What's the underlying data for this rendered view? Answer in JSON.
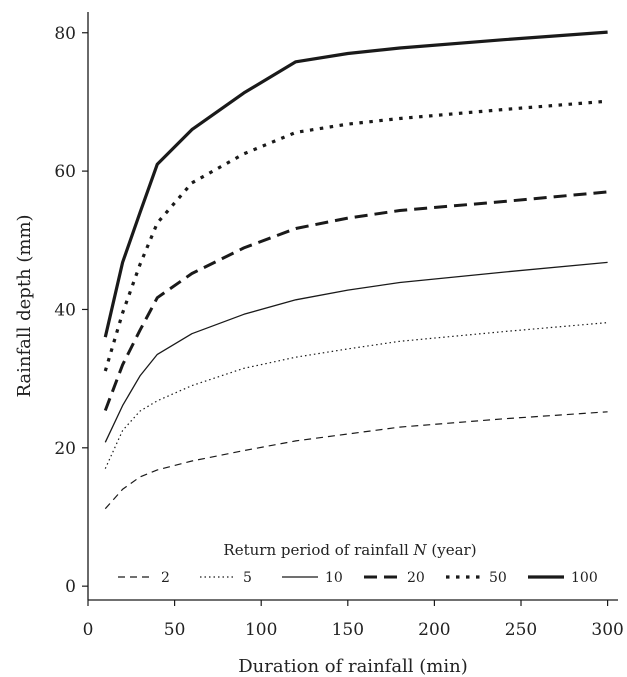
{
  "chart_data": {
    "type": "line",
    "title": "",
    "xlabel": "Duration of rainfall (min)",
    "ylabel": "Rainfall depth (mm)",
    "xlim": [
      0,
      306
    ],
    "ylim": [
      -2,
      83
    ],
    "xticks": [
      0,
      50,
      100,
      150,
      200,
      250,
      300
    ],
    "yticks": [
      0,
      20,
      40,
      60,
      80
    ],
    "grid": false,
    "legend": {
      "title_prefix": "Return period of rainfall ",
      "title_var": "N",
      "title_suffix": " (year)",
      "placement": "bottom",
      "entries": [
        "2",
        "5",
        "10",
        "20",
        "50",
        "100"
      ]
    },
    "x": [
      10,
      20,
      30,
      40,
      60,
      90,
      120,
      150,
      180,
      240,
      300
    ],
    "series": [
      {
        "name": "2",
        "style": "thin-dash",
        "values": [
          11.2,
          14.0,
          15.8,
          16.8,
          18.1,
          19.6,
          21.0,
          22.0,
          23.0,
          24.2,
          25.2
        ]
      },
      {
        "name": "5",
        "style": "thin-dot",
        "values": [
          17.0,
          22.5,
          25.3,
          26.8,
          29.0,
          31.5,
          33.1,
          34.3,
          35.4,
          36.8,
          38.1
        ]
      },
      {
        "name": "10",
        "style": "thin-solid",
        "values": [
          20.8,
          26.1,
          30.4,
          33.5,
          36.5,
          39.3,
          41.4,
          42.8,
          43.9,
          45.4,
          46.8
        ]
      },
      {
        "name": "20",
        "style": "bold-dash",
        "values": [
          25.4,
          32.0,
          37.0,
          41.7,
          45.2,
          48.9,
          51.7,
          53.2,
          54.3,
          55.6,
          57.0
        ]
      },
      {
        "name": "50",
        "style": "bold-dot",
        "values": [
          31.1,
          39.5,
          46.5,
          52.5,
          58.3,
          62.5,
          65.6,
          66.8,
          67.6,
          68.9,
          70.1
        ]
      },
      {
        "name": "100",
        "style": "bold-solid",
        "values": [
          36.0,
          46.8,
          54.0,
          61.0,
          66.0,
          71.3,
          75.8,
          77.0,
          77.8,
          79.0,
          80.1
        ]
      }
    ],
    "line_color": "#1a1a1a"
  }
}
